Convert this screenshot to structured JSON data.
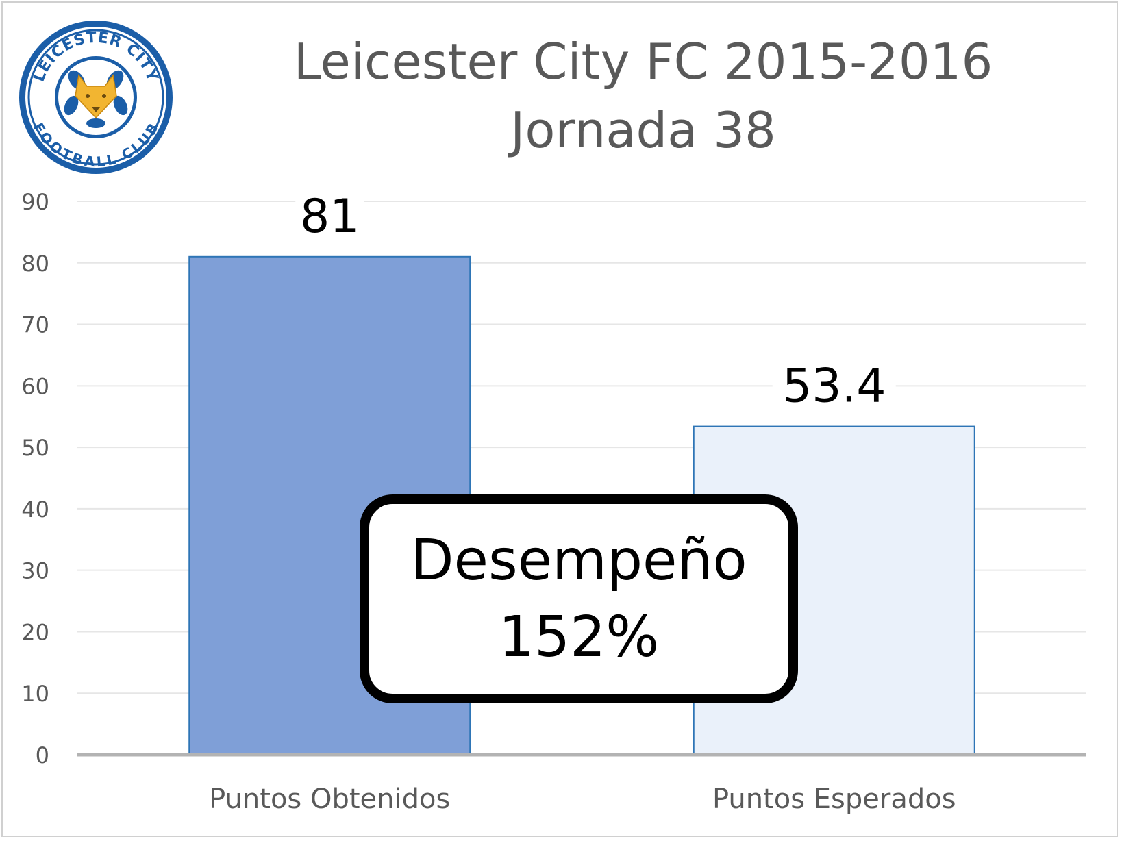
{
  "logo": {
    "icon": "leicester-city-crest-icon",
    "text_top": "LEICESTER CITY",
    "text_bottom": "FOOTBALL CLUB",
    "colors": {
      "ring": "#1b5ea8",
      "fox": "#f2b531"
    }
  },
  "chart_data": {
    "type": "bar",
    "title": "Leicester City FC 2015-2016",
    "subtitle": "Jornada 38",
    "categories": [
      "Puntos Obtenidos",
      "Puntos Esperados"
    ],
    "values": [
      81,
      53.4
    ],
    "data_labels": [
      "81",
      "53.4"
    ],
    "ylim": [
      0,
      90
    ],
    "yticks": [
      0,
      10,
      20,
      30,
      40,
      50,
      60,
      70,
      80,
      90
    ],
    "grid": true,
    "colors": [
      "#7f9fd7",
      "#eaf1fa"
    ],
    "edge_color": "#2e75b6",
    "annotation": {
      "line1": "Desempeño",
      "line2": "152%"
    }
  }
}
